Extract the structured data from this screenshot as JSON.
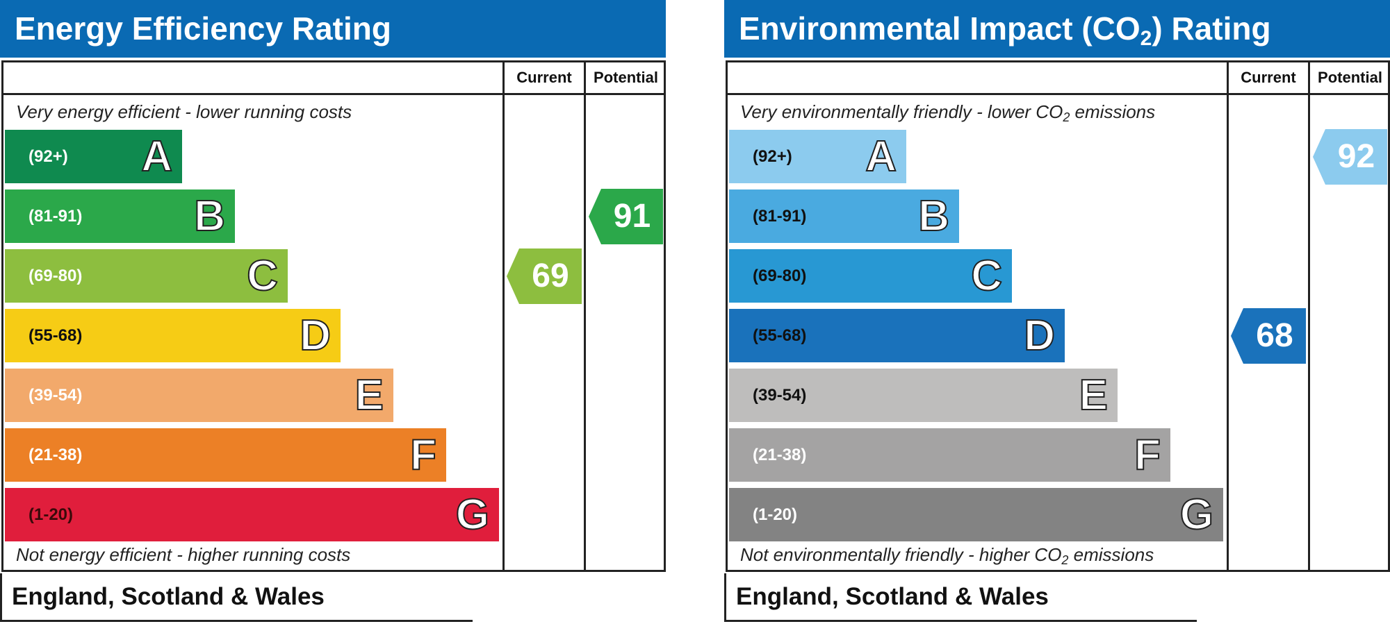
{
  "chart_data": [
    {
      "type": "bar",
      "title": "Energy Efficiency Rating",
      "columns": [
        "Current",
        "Potential"
      ],
      "top_note": "Very energy efficient - lower running costs",
      "bottom_note": "Not energy efficient - higher running costs",
      "categories": [
        "A",
        "B",
        "C",
        "D",
        "E",
        "F",
        "G"
      ],
      "ranges": [
        "(92+)",
        "(81-91)",
        "(69-80)",
        "(55-68)",
        "(39-54)",
        "(21-38)",
        "(1-20)"
      ],
      "colors": [
        "#0f8a4f",
        "#2ba84a",
        "#8dbe3f",
        "#f6cc15",
        "#f2a96b",
        "#ec8026",
        "#e01e3c"
      ],
      "current": {
        "value": "69",
        "band": "C",
        "color": "#8dbe3f"
      },
      "potential": {
        "value": "91",
        "band": "B",
        "color": "#2ba84a"
      },
      "region": "England, Scotland & Wales"
    },
    {
      "type": "bar",
      "title_main": "Environmental Impact (CO",
      "title_sub": "2",
      "title_end": ") Rating",
      "columns": [
        "Current",
        "Potential"
      ],
      "top_note_main": "Very environmentally friendly - lower CO",
      "top_note_sub": "2",
      "top_note_end": " emissions",
      "bottom_note_main": "Not environmentally friendly - higher CO",
      "bottom_note_sub": "2",
      "bottom_note_end": " emissions",
      "categories": [
        "A",
        "B",
        "C",
        "D",
        "E",
        "F",
        "G"
      ],
      "ranges": [
        "(92+)",
        "(81-91)",
        "(69-80)",
        "(55-68)",
        "(39-54)",
        "(21-38)",
        "(1-20)"
      ],
      "colors": [
        "#8ccbee",
        "#4aaae0",
        "#2898d3",
        "#1a72bb",
        "#bebdbc",
        "#a4a3a3",
        "#838383"
      ],
      "current": {
        "value": "68",
        "band": "D",
        "color": "#1a72bb"
      },
      "potential": {
        "value": "92",
        "band": "A",
        "color": "#8ccbee"
      },
      "region": "England, Scotland & Wales"
    }
  ]
}
